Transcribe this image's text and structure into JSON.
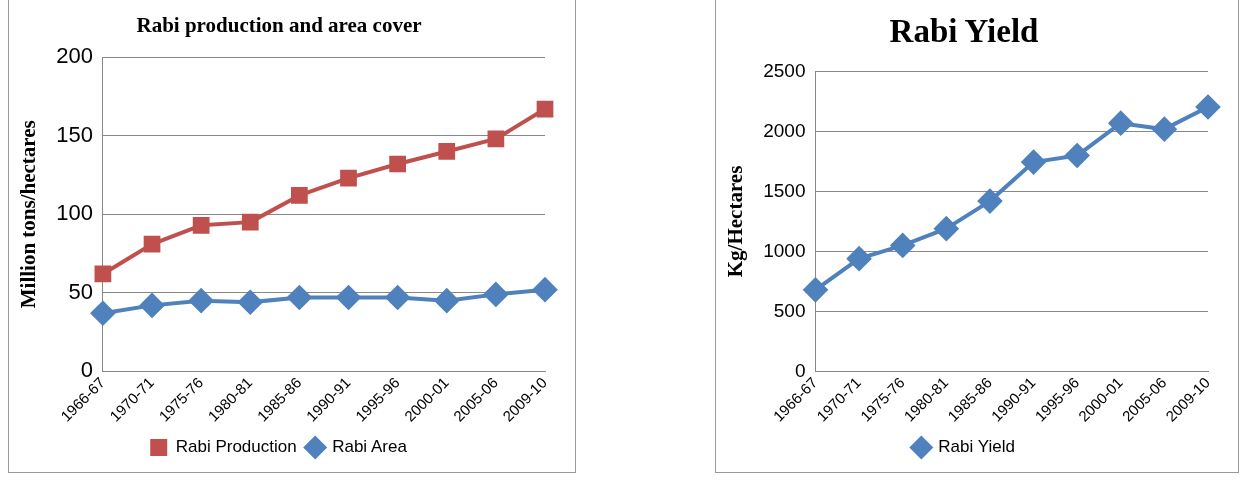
{
  "chart_data": [
    {
      "type": "line",
      "title": "Rabi production and area cover",
      "ylabel": "Million tons/hectares",
      "categories": [
        "1966-67",
        "1970-71",
        "1975-76",
        "1980-81",
        "1985-86",
        "1990-91",
        "1995-96",
        "2000-01",
        "2005-06",
        "2009-10"
      ],
      "series": [
        {
          "name": "Rabi Production",
          "color": "#c0504d",
          "marker": "square",
          "values": [
            62,
            81,
            93,
            95,
            112,
            123,
            132,
            140,
            148,
            167
          ]
        },
        {
          "name": "Rabi Area",
          "color": "#4f81bd",
          "marker": "diamond",
          "values": [
            37,
            42,
            45,
            44,
            47,
            47,
            47,
            45,
            49,
            52
          ]
        }
      ],
      "ylim": [
        0,
        200
      ],
      "yticks": [
        0,
        50,
        100,
        150,
        200
      ],
      "grid": "y",
      "legend": "bottom"
    },
    {
      "type": "line",
      "title": "Rabi Yield",
      "ylabel": "Kg/Hectares",
      "categories": [
        "1966-67",
        "1970-71",
        "1975-76",
        "1980-81",
        "1985-86",
        "1990-91",
        "1995-96",
        "2000-01",
        "2005-06",
        "2009-10"
      ],
      "series": [
        {
          "name": "Rabi Yield",
          "color": "#4f81bd",
          "marker": "diamond",
          "values": [
            680,
            940,
            1050,
            1190,
            1420,
            1745,
            1800,
            2070,
            2020,
            2205
          ]
        }
      ],
      "ylim": [
        0,
        2500
      ],
      "yticks": [
        0,
        500,
        1000,
        1500,
        2000,
        2500
      ],
      "grid": "y",
      "legend": "bottom"
    }
  ]
}
